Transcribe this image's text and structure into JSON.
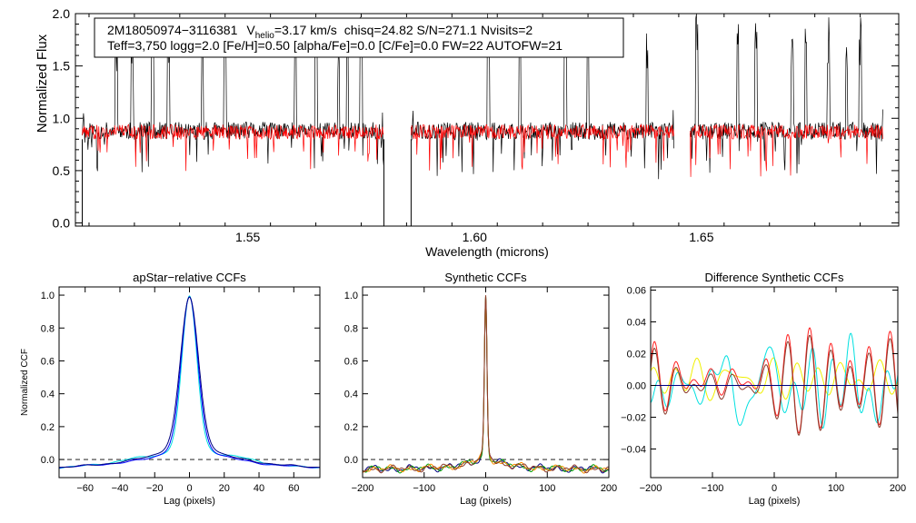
{
  "header": {
    "line1_id": "2M18050974−3116381",
    "line1_v": "V",
    "line1_vsub": "helio",
    "line1_vval": "=3.17 km/s",
    "line1_rest": "chisq=24.82  S/N=271.1  Nvisits=2",
    "line2": "Teff=3,750 logg=2.0 [Fe/H]=0.50 [alpha/Fe]=0.0 [C/Fe]=0.0 FW=22 AUTOFW=21"
  },
  "colors": {
    "observed": "#000000",
    "model": "#ff0000",
    "navy": "#000080",
    "blue": "#0000ff",
    "cyan": "#00e0e0",
    "green": "#00a000",
    "orange": "#ff9000",
    "red": "#ff2020",
    "brown": "#8b3a2a",
    "yellow": "#f0f000"
  },
  "chart_data": [
    {
      "id": "spectrum",
      "type": "line",
      "title": "",
      "xlabel": "Wavelength (microns)",
      "ylabel": "Normalized Flux",
      "xlim": [
        1.512,
        1.6935
      ],
      "ylim": [
        -0.03,
        2.0
      ],
      "xticks": [
        1.55,
        1.6,
        1.65
      ],
      "xticklabels": [
        "1.55",
        "1.60",
        "1.65"
      ],
      "yticks": [
        0.0,
        0.5,
        1.0,
        1.5,
        2.0
      ],
      "yticklabels": [
        "0.0",
        "0.5",
        "1.0",
        "1.5",
        "2.0"
      ],
      "chips": [
        [
          1.5135,
          1.58
        ],
        [
          1.586,
          1.644
        ],
        [
          1.6475,
          1.69
        ]
      ],
      "series": [
        {
          "name": "observed",
          "color_key": "observed",
          "level": 0.88,
          "noise": 0.085
        },
        {
          "name": "model",
          "color_key": "model",
          "level": 0.87,
          "noise": 0.07
        }
      ],
      "spikes": [
        1.521,
        1.5245,
        1.529,
        1.5325,
        1.54,
        1.545,
        1.5605,
        1.565,
        1.57,
        1.572,
        1.575,
        1.603,
        1.61,
        1.62,
        1.625,
        1.638,
        1.649,
        1.658,
        1.662,
        1.67,
        1.673,
        1.678,
        1.682,
        1.685
      ]
    },
    {
      "id": "ccf-apstar",
      "type": "line",
      "title": "apStar−relative CCFs",
      "xlabel": "Lag (pixels)",
      "ylabel": "Normalized CCF",
      "xlim": [
        -75,
        75
      ],
      "ylim": [
        -0.11,
        1.05
      ],
      "xticks": [
        -60,
        -40,
        -20,
        0,
        20,
        40,
        60
      ],
      "xticklabels": [
        "−60",
        "−40",
        "−20",
        "0",
        "20",
        "40",
        "60"
      ],
      "yticks": [
        0.0,
        0.2,
        0.4,
        0.6,
        0.8,
        1.0
      ],
      "yticklabels": [
        "0.0",
        "0.2",
        "0.4",
        "0.6",
        "0.8",
        "1.0"
      ],
      "series": [
        {
          "name": "ccf-cyan",
          "color_key": "cyan"
        },
        {
          "name": "ccf-blue",
          "color_key": "blue"
        },
        {
          "name": "ccf-navy",
          "color_key": "navy"
        }
      ]
    },
    {
      "id": "ccf-synthetic",
      "type": "line",
      "title": "Synthetic CCFs",
      "xlabel": "Lag (pixels)",
      "ylabel": "",
      "xlim": [
        -200,
        200
      ],
      "ylim": [
        -0.11,
        1.05
      ],
      "xticks": [
        -200,
        -100,
        0,
        100,
        200
      ],
      "xticklabels": [
        "−200",
        "−100",
        "0",
        "100",
        "200"
      ],
      "yticks": [
        0.0,
        0.2,
        0.4,
        0.6,
        0.8,
        1.0
      ],
      "yticklabels": [
        "0.0",
        "0.2",
        "0.4",
        "0.6",
        "0.8",
        "1.0"
      ],
      "series": [
        {
          "name": "syn-navy",
          "color_key": "navy"
        },
        {
          "name": "syn-green",
          "color_key": "green"
        },
        {
          "name": "syn-orange",
          "color_key": "orange"
        },
        {
          "name": "syn-brown",
          "color_key": "brown"
        }
      ]
    },
    {
      "id": "ccf-difference",
      "type": "line",
      "title": "Difference Synthetic CCFs",
      "xlabel": "Lag (pixels)",
      "ylabel": "",
      "xlim": [
        -200,
        200
      ],
      "ylim": [
        -0.058,
        0.062
      ],
      "xticks": [
        -200,
        -100,
        0,
        100,
        200
      ],
      "xticklabels": [
        "−200",
        "−100",
        "0",
        "100",
        "200"
      ],
      "yticks": [
        -0.04,
        -0.02,
        0.0,
        0.02,
        0.04,
        0.06
      ],
      "yticklabels": [
        "−0.04",
        "−0.02",
        "0.00",
        "0.02",
        "0.04",
        "0.06"
      ],
      "series": [
        {
          "name": "diff-yellow",
          "color_key": "yellow"
        },
        {
          "name": "diff-cyan",
          "color_key": "cyan"
        },
        {
          "name": "diff-red",
          "color_key": "red"
        },
        {
          "name": "diff-brown",
          "color_key": "brown"
        },
        {
          "name": "diff-zero",
          "color_key": "navy"
        }
      ]
    }
  ]
}
